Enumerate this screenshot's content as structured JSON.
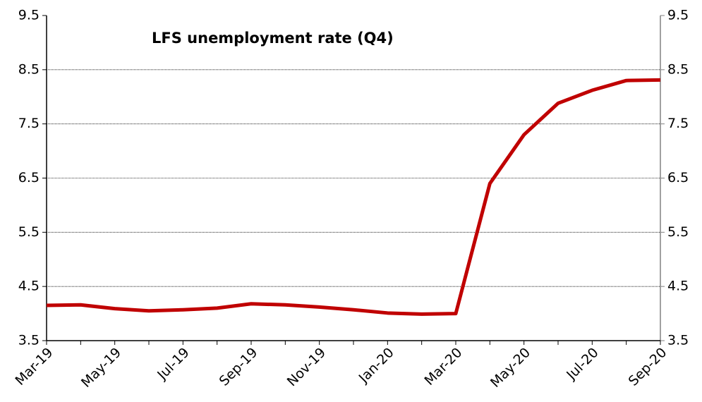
{
  "chart_data": {
    "type": "line",
    "title": "LFS unemployment rate (Q4)",
    "categories": [
      "Mar-19",
      null,
      "May-19",
      null,
      "Jul-19",
      null,
      "Sep-19",
      null,
      "Nov-19",
      null,
      "Jan-20",
      null,
      "Mar-20",
      null,
      "May-20",
      null,
      "Jul-20",
      null,
      "Sep-20"
    ],
    "values": [
      4.15,
      4.16,
      4.09,
      4.05,
      4.07,
      4.1,
      4.18,
      4.16,
      4.12,
      4.07,
      4.01,
      3.99,
      4.0,
      6.4,
      7.3,
      7.88,
      8.12,
      8.3,
      8.31
    ],
    "color": "#c00000",
    "ylim": [
      3.5,
      9.5
    ],
    "yticks": [
      3.5,
      4.5,
      5.5,
      6.5,
      7.5,
      8.5,
      9.5
    ],
    "y2lim": [
      3.5,
      9.5
    ],
    "y2ticks": [
      3.5,
      4.5,
      5.5,
      6.5,
      7.5,
      8.5,
      9.5
    ],
    "grid": true
  }
}
